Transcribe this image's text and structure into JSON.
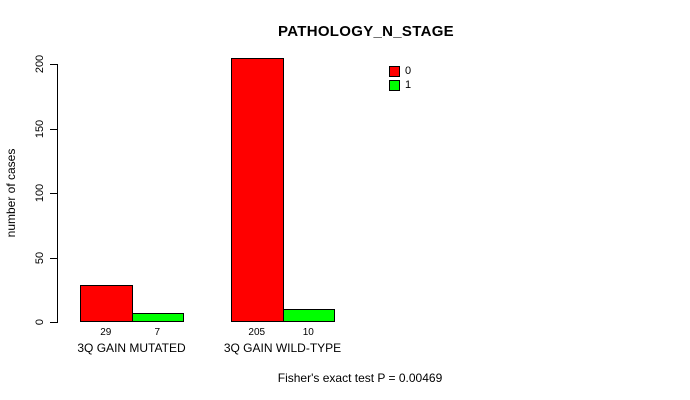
{
  "chart": {
    "title": "PATHOLOGY_N_STAGE",
    "ylabel": "number of cases",
    "annotation": "Fisher's exact test P = 0.00469"
  },
  "chart_data": {
    "type": "bar",
    "title": "PATHOLOGY_N_STAGE",
    "xlabel": "",
    "ylabel": "number of cases",
    "categories": [
      "3Q GAIN MUTATED",
      "3Q GAIN WILD-TYPE"
    ],
    "series": [
      {
        "name": "0",
        "color": "#ff0000",
        "values": [
          29,
          205
        ]
      },
      {
        "name": "1",
        "color": "#00ff00",
        "values": [
          7,
          10
        ]
      }
    ],
    "bar_value_labels": [
      [
        "29",
        "7"
      ],
      [
        "205",
        "10"
      ]
    ],
    "yticks": [
      0,
      50,
      100,
      150,
      200
    ],
    "ylim": [
      0,
      200
    ],
    "grid": false,
    "legend_position": "top-right",
    "annotation": "Fisher's exact test P = 0.00469",
    "colors": {
      "series_0": "#ff0000",
      "series_1": "#00ff00",
      "axis": "#000000",
      "background": "#ffffff"
    }
  }
}
